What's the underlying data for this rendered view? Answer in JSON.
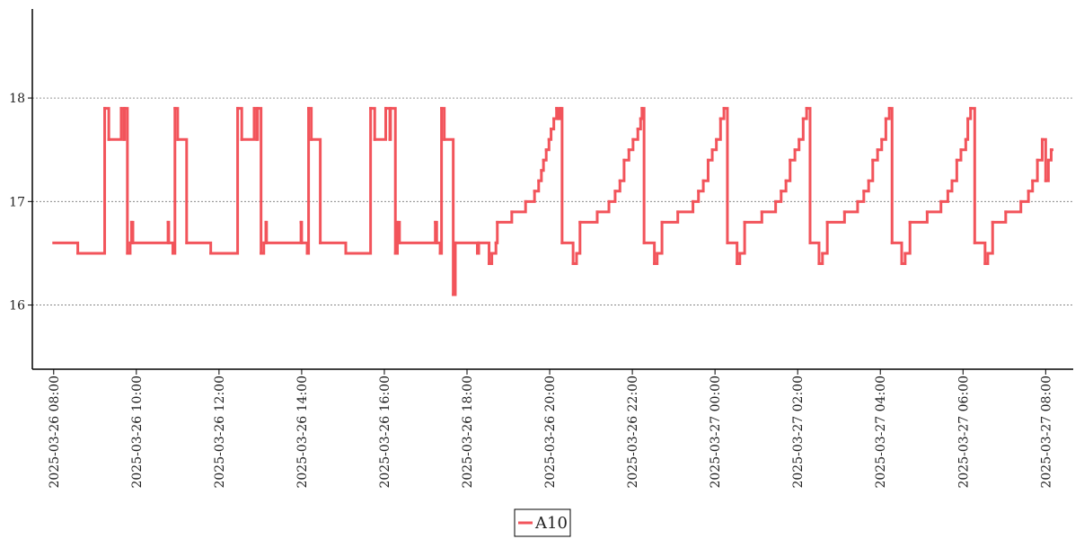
{
  "chart_data": {
    "type": "line",
    "step": "post",
    "xlim": [
      "2025-03-26 07:29",
      "2025-03-27 08:40"
    ],
    "ylim": [
      15.38,
      18.86
    ],
    "yticks": [
      16,
      17,
      18
    ],
    "xticks": [
      "2025-03-26 08:00",
      "2025-03-26 10:00",
      "2025-03-26 12:00",
      "2025-03-26 14:00",
      "2025-03-26 16:00",
      "2025-03-26 18:00",
      "2025-03-26 20:00",
      "2025-03-26 22:00",
      "2025-03-27 00:00",
      "2025-03-27 02:00",
      "2025-03-27 04:00",
      "2025-03-27 06:00",
      "2025-03-27 08:00"
    ],
    "grid": "y",
    "legend": "bottom",
    "series": [
      {
        "name": "A10",
        "color": "#f2545b",
        "x": [
          "2025-03-26 08:00",
          "2025-03-26 08:35",
          "2025-03-26 09:14",
          "2025-03-26 09:20",
          "2025-03-26 09:38",
          "2025-03-26 09:42",
          "2025-03-26 09:43",
          "2025-03-26 09:47",
          "2025-03-26 09:51",
          "2025-03-26 09:53",
          "2025-03-26 09:55",
          "2025-03-26 10:46",
          "2025-03-26 10:47",
          "2025-03-26 10:53",
          "2025-03-26 10:56",
          "2025-03-26 11:00",
          "2025-03-26 11:13",
          "2025-03-26 11:48",
          "2025-03-26 12:27",
          "2025-03-26 12:33",
          "2025-03-26 12:51",
          "2025-03-26 12:55",
          "2025-03-26 12:56",
          "2025-03-26 13:01",
          "2025-03-26 13:05",
          "2025-03-26 13:08",
          "2025-03-26 13:09",
          "2025-03-26 13:59",
          "2025-03-26 14:00",
          "2025-03-26 14:08",
          "2025-03-26 14:10",
          "2025-03-26 14:14",
          "2025-03-26 14:27",
          "2025-03-26 15:04",
          "2025-03-26 15:40",
          "2025-03-26 15:46",
          "2025-03-26 16:02",
          "2025-03-26 16:08",
          "2025-03-26 16:09",
          "2025-03-26 16:16",
          "2025-03-26 16:19",
          "2025-03-26 16:22",
          "2025-03-26 17:14",
          "2025-03-26 17:16",
          "2025-03-26 17:21",
          "2025-03-26 17:23",
          "2025-03-26 17:27",
          "2025-03-26 17:40",
          "2025-03-26 17:43",
          "2025-03-26 18:15",
          "2025-03-26 18:17",
          "2025-03-26 18:32",
          "2025-03-26 18:36",
          "2025-03-26 18:42",
          "2025-03-26 18:44",
          "2025-03-26 19:05",
          "2025-03-26 19:25",
          "2025-03-26 19:38",
          "2025-03-26 19:44",
          "2025-03-26 19:48",
          "2025-03-26 19:51",
          "2025-03-26 19:55",
          "2025-03-26 19:59",
          "2025-03-26 20:02",
          "2025-03-26 20:06",
          "2025-03-26 20:10",
          "2025-03-26 20:13",
          "2025-03-26 20:16",
          "2025-03-26 20:18",
          "2025-03-26 20:34",
          "2025-03-26 20:39",
          "2025-03-26 20:44",
          "2025-03-26 21:09",
          "2025-03-26 21:26",
          "2025-03-26 21:35",
          "2025-03-26 21:42",
          "2025-03-26 21:48",
          "2025-03-26 21:55",
          "2025-03-26 22:01",
          "2025-03-26 22:08",
          "2025-03-26 22:12",
          "2025-03-26 22:14",
          "2025-03-26 22:17",
          "2025-03-26 22:32",
          "2025-03-26 22:36",
          "2025-03-26 22:43",
          "2025-03-26 23:06",
          "2025-03-26 23:28",
          "2025-03-26 23:36",
          "2025-03-26 23:43",
          "2025-03-26 23:50",
          "2025-03-26 23:56",
          "2025-03-27 00:02",
          "2025-03-27 00:08",
          "2025-03-27 00:13",
          "2025-03-27 00:18",
          "2025-03-27 00:32",
          "2025-03-27 00:36",
          "2025-03-27 00:43",
          "2025-03-27 01:08",
          "2025-03-27 01:28",
          "2025-03-27 01:36",
          "2025-03-27 01:43",
          "2025-03-27 01:49",
          "2025-03-27 01:56",
          "2025-03-27 02:02",
          "2025-03-27 02:08",
          "2025-03-27 02:13",
          "2025-03-27 02:18",
          "2025-03-27 02:31",
          "2025-03-27 02:36",
          "2025-03-27 02:43",
          "2025-03-27 03:08",
          "2025-03-27 03:27",
          "2025-03-27 03:36",
          "2025-03-27 03:43",
          "2025-03-27 03:49",
          "2025-03-27 03:56",
          "2025-03-27 04:02",
          "2025-03-27 04:08",
          "2025-03-27 04:13",
          "2025-03-27 04:17",
          "2025-03-27 04:31",
          "2025-03-27 04:36",
          "2025-03-27 04:43",
          "2025-03-27 05:08",
          "2025-03-27 05:28",
          "2025-03-27 05:38",
          "2025-03-27 05:44",
          "2025-03-27 05:51",
          "2025-03-27 05:57",
          "2025-03-27 06:04",
          "2025-03-27 06:07",
          "2025-03-27 06:11",
          "2025-03-27 06:17",
          "2025-03-27 06:32",
          "2025-03-27 06:36",
          "2025-03-27 06:43",
          "2025-03-27 07:02",
          "2025-03-27 07:24",
          "2025-03-27 07:35",
          "2025-03-27 07:41",
          "2025-03-27 07:48",
          "2025-03-27 07:55",
          "2025-03-27 08:00",
          "2025-03-27 08:04",
          "2025-03-27 08:08"
        ],
        "values": [
          16.6,
          16.5,
          17.9,
          17.6,
          17.9,
          17.6,
          17.9,
          16.5,
          16.6,
          16.8,
          16.6,
          16.8,
          16.6,
          16.5,
          17.9,
          17.6,
          16.6,
          16.5,
          17.9,
          17.6,
          17.9,
          17.6,
          17.9,
          16.5,
          16.6,
          16.8,
          16.6,
          16.8,
          16.6,
          16.5,
          17.9,
          17.6,
          16.6,
          16.5,
          17.9,
          17.6,
          17.9,
          17.6,
          17.9,
          16.5,
          16.8,
          16.6,
          16.8,
          16.6,
          16.5,
          17.9,
          17.6,
          16.1,
          16.6,
          16.5,
          16.6,
          16.4,
          16.5,
          16.6,
          16.8,
          16.9,
          17.0,
          17.1,
          17.2,
          17.3,
          17.4,
          17.5,
          17.6,
          17.7,
          17.8,
          17.9,
          17.8,
          17.9,
          16.6,
          16.4,
          16.5,
          16.8,
          16.9,
          17.0,
          17.1,
          17.2,
          17.4,
          17.5,
          17.6,
          17.7,
          17.8,
          17.9,
          16.6,
          16.4,
          16.5,
          16.8,
          16.9,
          17.0,
          17.1,
          17.2,
          17.4,
          17.5,
          17.6,
          17.8,
          17.9,
          16.6,
          16.4,
          16.5,
          16.8,
          16.9,
          17.0,
          17.1,
          17.2,
          17.4,
          17.5,
          17.6,
          17.8,
          17.9,
          16.6,
          16.4,
          16.5,
          16.8,
          16.9,
          17.0,
          17.1,
          17.2,
          17.4,
          17.5,
          17.6,
          17.8,
          17.9,
          16.6,
          16.4,
          16.5,
          16.8,
          16.9,
          17.0,
          17.1,
          17.2,
          17.4,
          17.5,
          17.6,
          17.8,
          17.9,
          16.6,
          16.4,
          16.5,
          16.8,
          16.9,
          17.0,
          17.1,
          17.2,
          17.4,
          17.6,
          17.2,
          17.4,
          17.5
        ]
      }
    ]
  }
}
